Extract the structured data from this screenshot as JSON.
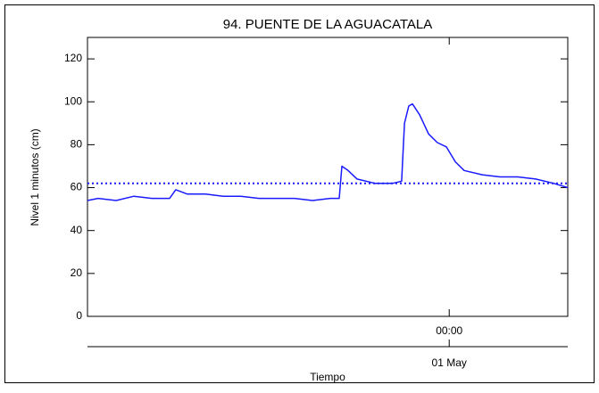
{
  "chart_data": {
    "type": "line",
    "title": "94. PUENTE DE LA AGUACATALA",
    "y_label": "Nivel 1 minutos (cm)",
    "x_label": "Tiempo",
    "x": [
      -17.7,
      -17.18,
      -16.3,
      -15.43,
      -14.55,
      -13.68,
      -13.38,
      -12.81,
      -11.93,
      -11.06,
      -10.19,
      -9.31,
      -8.44,
      -7.57,
      -6.69,
      -5.82,
      -5.38,
      -5.25,
      -4.95,
      -4.51,
      -3.64,
      -2.76,
      -2.33,
      -2.19,
      -1.98,
      -1.8,
      -1.45,
      -1.01,
      -0.58,
      -0.14,
      0.3,
      0.73,
      1.61,
      2.48,
      3.35,
      4.23,
      5.1,
      5.8
    ],
    "series": [
      {
        "color": "#1a1aff",
        "values": [
          54,
          55,
          54,
          56,
          55,
          55,
          59,
          57,
          57,
          56,
          56,
          55,
          55,
          55,
          54,
          55,
          55,
          70,
          68,
          64,
          62,
          62,
          63,
          90,
          98,
          99,
          94,
          85,
          81,
          79,
          72,
          68,
          66,
          65,
          65,
          64,
          62,
          60
        ]
      }
    ],
    "reference_line": 62,
    "reference_color": "#1a1aff",
    "xlim": [
      -17.7,
      5.8
    ],
    "xticks": [
      {
        "value": 0,
        "label": "00:00"
      }
    ],
    "x_date_ticks": [
      {
        "value": 0,
        "label": "01 May"
      }
    ],
    "ylim": [
      0,
      130
    ],
    "yticks": [
      0,
      20,
      40,
      60,
      80,
      100,
      120
    ]
  }
}
